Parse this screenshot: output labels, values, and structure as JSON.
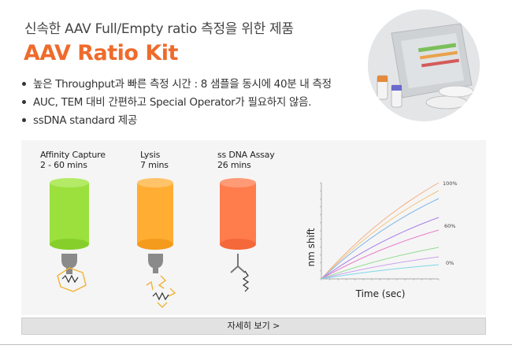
{
  "header": {
    "subtitle": "신속한 AAV Full/Empty ratio 측정을 위한 제품",
    "title": "AAV Ratio Kit"
  },
  "features": [
    "높은 Throughput과 빠른 측정 시간 : 8 샘플을 동시에 40분 내 측정",
    "AUC, TEM 대비 간편하고 Special Operator가 필요하지 않음.",
    "ssDNA standard 제공"
  ],
  "workflow": {
    "steps": [
      {
        "name": "Affinity Capture",
        "time": "2 - 60 mins",
        "color": "#99dd33"
      },
      {
        "name": "Lysis",
        "time": "7 mins",
        "color": "#ffad33"
      },
      {
        "name": "ss DNA Assay",
        "time": "26 mins",
        "color": "#ff7c4d"
      }
    ]
  },
  "chart": {
    "ylabel": "nm shift",
    "xlabel": "Time (sec)",
    "curve_labels": [
      "100%",
      "60%",
      "0%"
    ],
    "series_colors": [
      "#f5a97f",
      "#f2c57f",
      "#7fb2e8",
      "#a97fe8",
      "#e87fc9",
      "#8fdc8f",
      "#c9a2f0",
      "#7fd6e8"
    ]
  },
  "cta": {
    "label": "자세히 보기 >"
  }
}
